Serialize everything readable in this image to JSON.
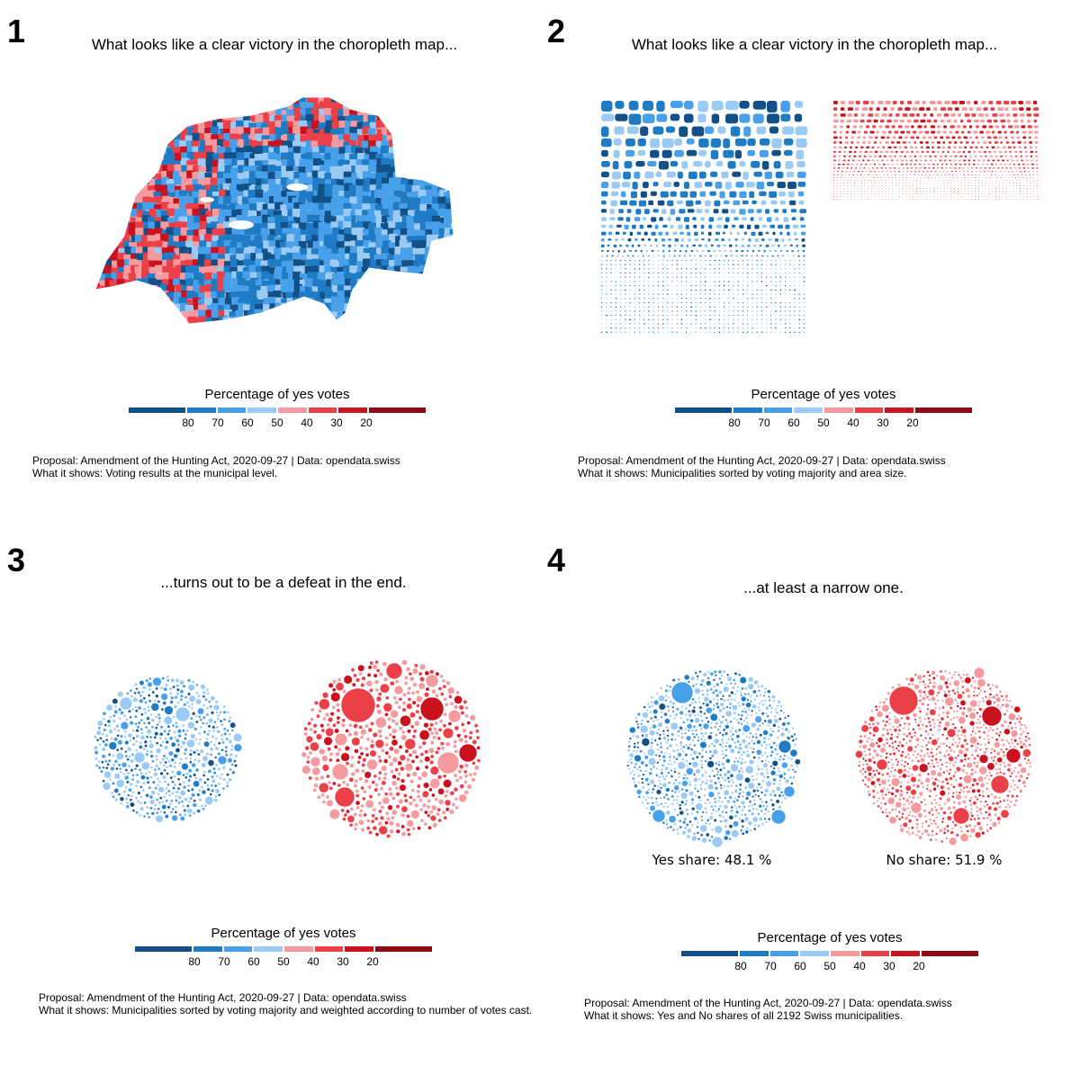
{
  "colors": {
    "scale": [
      "#135087",
      "#1f7bc4",
      "#48a0eb",
      "#9bcbf5",
      "#f59a9e",
      "#ec4048",
      "#c9121d",
      "#8d0a12"
    ],
    "yes_light": "#9bcbf5",
    "no_light": "#f59a9e"
  },
  "panels": [
    {
      "number": "1",
      "title": "What looks like a clear victory in the choropleth map...",
      "legend": {
        "title": "Percentage of yes votes",
        "ticks": [
          "80",
          "70",
          "60",
          "50",
          "40",
          "30",
          "20"
        ]
      },
      "footer": {
        "line1": "Proposal: Amendment of the Hunting Act, 2020-09-27 | Data: opendata.swiss",
        "line2": "What it shows: Voting results at the municipal level."
      }
    },
    {
      "number": "2",
      "title": "What looks like a clear victory in the choropleth map...",
      "legend": {
        "title": "Percentage of yes votes",
        "ticks": [
          "80",
          "70",
          "60",
          "50",
          "40",
          "30",
          "20"
        ]
      },
      "footer": {
        "line1": "Proposal: Amendment of the Hunting Act, 2020-09-27 | Data: opendata.swiss",
        "line2": "What it shows: Municipalities sorted by voting majority and area size."
      }
    },
    {
      "number": "3",
      "title": "...turns out to be a defeat in the end.",
      "legend": {
        "title": "Percentage of yes votes",
        "ticks": [
          "80",
          "70",
          "60",
          "50",
          "40",
          "30",
          "20"
        ]
      },
      "footer": {
        "line1": "Proposal: Amendment of the Hunting Act, 2020-09-27 | Data: opendata.swiss",
        "line2": "What it shows: Municipalities sorted by voting majority and weighted according to number of votes cast."
      }
    },
    {
      "number": "4",
      "title": "...at least a narrow one.",
      "yes_share": "Yes share: 48.1 %",
      "no_share": "No share: 51.9 %",
      "legend": {
        "title": "Percentage of yes votes",
        "ticks": [
          "80",
          "70",
          "60",
          "50",
          "40",
          "30",
          "20"
        ]
      },
      "footer": {
        "line1": "Proposal: Amendment of the Hunting Act, 2020-09-27 | Data: opendata.swiss",
        "line2": "What it shows: Yes and No shares of all 2192 Swiss municipalities."
      }
    }
  ]
}
